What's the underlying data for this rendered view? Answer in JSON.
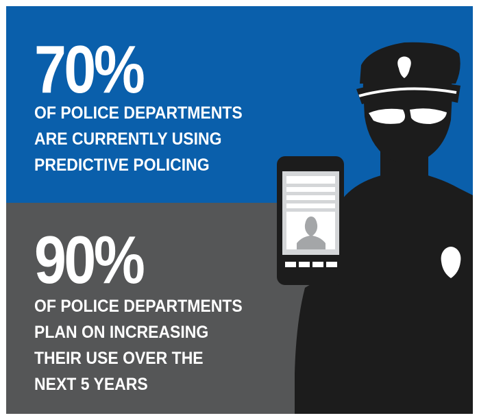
{
  "stat1": {
    "value": "70%",
    "lines": [
      "OF POLICE DEPARTMENTS",
      "ARE CURRENTLY USING",
      "PREDICTIVE POLICING"
    ]
  },
  "stat2": {
    "value": "90%",
    "lines": [
      "OF POLICE DEPARTMENTS",
      "PLAN ON INCREASING",
      "THEIR USE OVER THE",
      "NEXT 5 YEARS"
    ]
  },
  "colors": {
    "top_panel": "#0a5fab",
    "bottom_panel": "#555657",
    "silhouette": "#1c1c1c",
    "text": "#ffffff"
  },
  "icons": [
    "police-officer-silhouette-icon",
    "smartphone-icon",
    "police-badge-icon"
  ]
}
